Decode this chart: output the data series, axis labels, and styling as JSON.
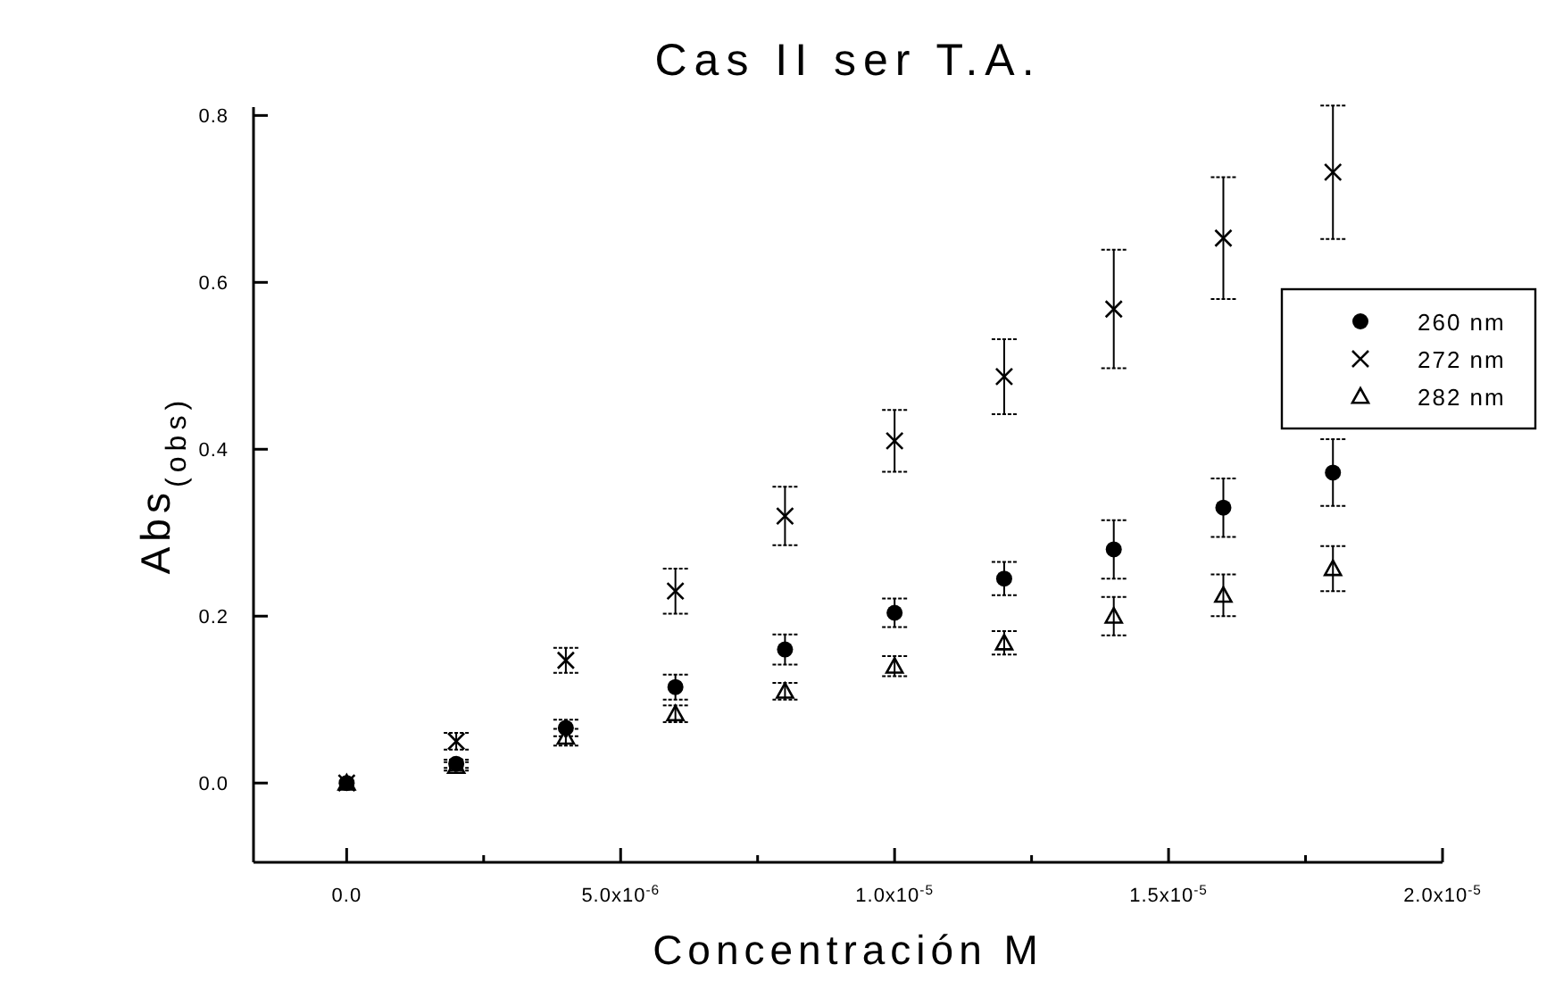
{
  "chart_data": {
    "type": "scatter",
    "title": "Cas II ser T.A.",
    "xlabel": "Concentración M",
    "ylabel": "Abs$_{(obs)}$",
    "x": [
      0,
      2e-06,
      4e-06,
      6e-06,
      8e-06,
      1e-05,
      1.2e-05,
      1.4e-05,
      1.6e-05,
      1.8e-05
    ],
    "series": [
      {
        "name": "260 nm",
        "color": "#000000",
        "marker": "circle",
        "values": [
          0,
          0.023,
          0.066,
          0.115,
          0.16,
          0.204,
          0.245,
          0.28,
          0.33,
          0.372
        ],
        "errors": [
          null,
          0.005,
          0.01,
          0.015,
          0.018,
          0.017,
          0.02,
          0.035,
          0.035,
          0.04
        ]
      },
      {
        "name": "272 nm",
        "color": "#000000",
        "marker": "cross",
        "values": [
          0,
          0.05,
          0.147,
          0.23,
          0.32,
          0.41,
          0.487,
          0.568,
          0.653,
          0.732
        ],
        "errors": [
          null,
          0.01,
          0.015,
          0.027,
          0.035,
          0.037,
          0.045,
          0.071,
          0.073,
          0.08
        ]
      },
      {
        "name": "282 nm",
        "color": "#000000",
        "marker": "triangle",
        "values": [
          0,
          0.02,
          0.055,
          0.083,
          0.11,
          0.14,
          0.168,
          0.2,
          0.225,
          0.257
        ],
        "errors": [
          null,
          0.005,
          0.01,
          0.01,
          0.01,
          0.012,
          0.014,
          0.023,
          0.025,
          0.027
        ]
      }
    ],
    "xlim": [
      -1.7e-06,
      2e-05
    ],
    "ylim": [
      -0.095,
      0.81
    ],
    "xticks": [
      {
        "value": 0,
        "label": "0.0"
      },
      {
        "value": 2.5e-06,
        "label": null
      },
      {
        "value": 5e-06,
        "label": "5.0x10$^{-6}$"
      },
      {
        "value": 7.5e-06,
        "label": null
      },
      {
        "value": 1e-05,
        "label": "1.0x10$^{-5}$"
      },
      {
        "value": 1.25e-05,
        "label": null
      },
      {
        "value": 1.5e-05,
        "label": "1.5x10$^{-5}$"
      },
      {
        "value": 1.75e-05,
        "label": null
      },
      {
        "value": 2e-05,
        "label": "2.0x10$^{-5}$"
      }
    ],
    "yticks": [
      {
        "value": 0,
        "label": "0.0"
      },
      {
        "value": 0.2,
        "label": "0.2"
      },
      {
        "value": 0.4,
        "label": "0.4"
      },
      {
        "value": 0.6,
        "label": "0.6"
      },
      {
        "value": 0.8,
        "label": "0.8"
      }
    ],
    "grid": false,
    "legend": "right"
  }
}
